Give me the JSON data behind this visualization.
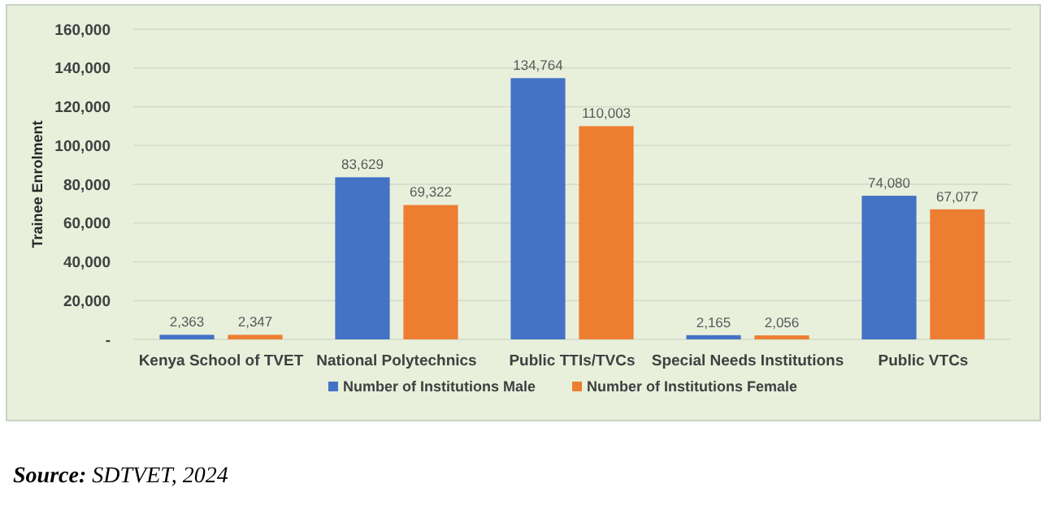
{
  "chart_data": {
    "type": "bar",
    "ylabel": "Trainee Enrolment",
    "categories": [
      "Kenya School of TVET",
      "National Polytechnics",
      "Public TTIs/TVCs",
      "Special Needs Institutions",
      "Public VTCs"
    ],
    "series": [
      {
        "name": "Number of Institutions Male",
        "color": "#4472c4",
        "values": [
          2363,
          83629,
          134764,
          2165,
          74080
        ],
        "value_labels": [
          "2,363",
          "83,629",
          "134,764",
          "2,165",
          "74,080"
        ]
      },
      {
        "name": "Number of Institutions Female",
        "color": "#ed7d31",
        "values": [
          2347,
          69322,
          110003,
          2056,
          67077
        ],
        "value_labels": [
          "2,347",
          "69,322",
          "110,003",
          "2,056",
          "67,077"
        ]
      }
    ],
    "ylim": [
      0,
      160000
    ],
    "yticks": [
      {
        "value": 0,
        "label": "-"
      },
      {
        "value": 20000,
        "label": "20,000"
      },
      {
        "value": 40000,
        "label": "40,000"
      },
      {
        "value": 60000,
        "label": "60,000"
      },
      {
        "value": 80000,
        "label": "80,000"
      },
      {
        "value": 100000,
        "label": "100,000"
      },
      {
        "value": 120000,
        "label": "120,000"
      },
      {
        "value": 140000,
        "label": "140,000"
      },
      {
        "value": 160000,
        "label": "160,000"
      }
    ],
    "grid": "y",
    "legend": "bottom",
    "annotations": [
      "Source: SDTVET, 2024"
    ]
  }
}
